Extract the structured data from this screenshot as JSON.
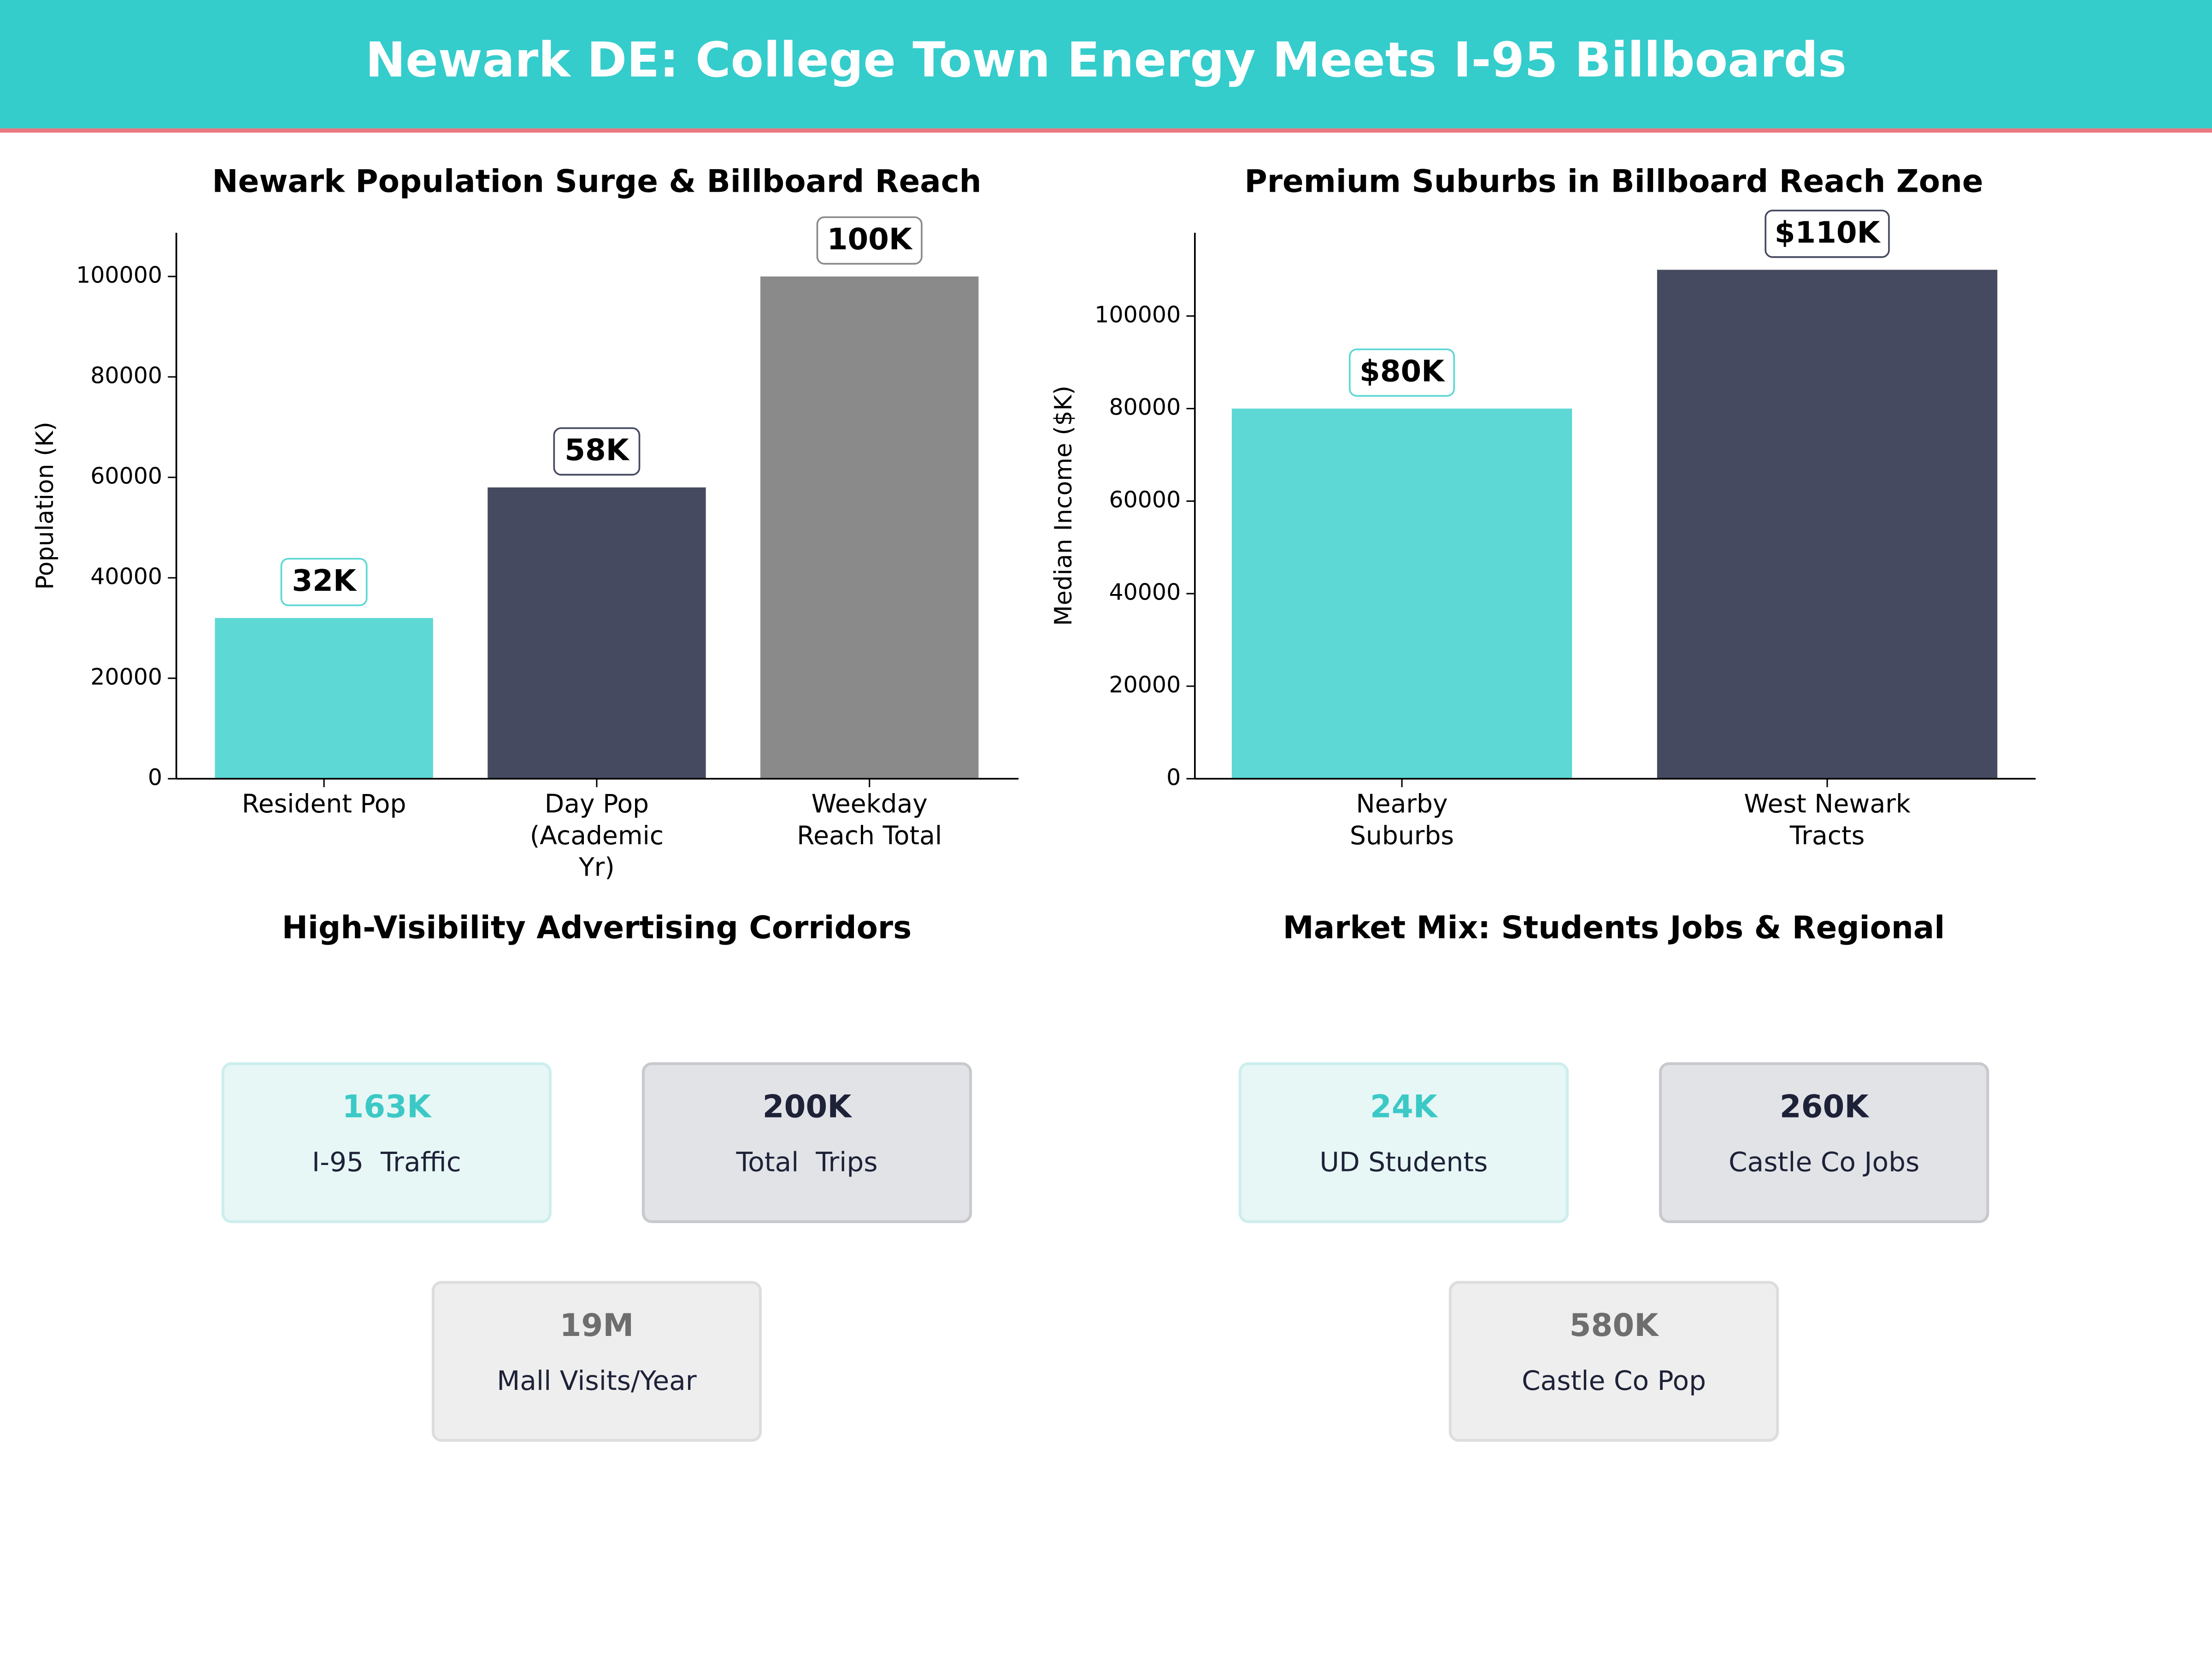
{
  "header": {
    "title": "Newark DE: College Town Energy Meets I-95 Billboards"
  },
  "chart_data": [
    {
      "type": "bar",
      "title": "Newark Population Surge & Billboard Reach",
      "ylabel": "Population (K)",
      "categories": [
        "Resident Pop",
        "Day Pop (Academic Yr)",
        "Weekday Reach Total"
      ],
      "values": [
        32000,
        58000,
        100000
      ],
      "value_labels": [
        "32K",
        "58K",
        "100K"
      ],
      "colors": [
        "#5dd8d4",
        "#454a60",
        "#8a8a8a"
      ],
      "ylim": [
        0,
        108700
      ],
      "yticks": [
        0,
        20000,
        40000,
        60000,
        80000,
        100000
      ]
    },
    {
      "type": "bar",
      "title": "Premium Suburbs in Billboard Reach Zone",
      "ylabel": "Median Income ($K)",
      "categories": [
        "Nearby Suburbs",
        "West Newark Tracts"
      ],
      "values": [
        80000,
        110000
      ],
      "value_labels": [
        "$80K",
        "$110K"
      ],
      "colors": [
        "#5dd8d4",
        "#454a60"
      ],
      "ylim": [
        0,
        118000
      ],
      "yticks": [
        0,
        20000,
        40000,
        60000,
        80000,
        100000
      ]
    }
  ],
  "panels": [
    {
      "title": "High-Visibility Advertising Corridors",
      "cards": [
        {
          "value": "163K",
          "label": "I-95  Traffic",
          "color": "#3cc9c6",
          "background": "#e6f7f6",
          "border": "#cdeeee"
        },
        {
          "value": "200K",
          "label": "Total  Trips",
          "color": "#1e2238",
          "background": "#e2e3e7",
          "border": "#c8c9cd"
        },
        {
          "value": "19M",
          "label": "Mall Visits/Year",
          "color": "#6e6e6e",
          "background": "#eeeeee",
          "border": "#dddddd"
        }
      ]
    },
    {
      "title": "Market Mix: Students Jobs & Regional",
      "cards": [
        {
          "value": "24K",
          "label": "UD Students",
          "color": "#3cc9c6",
          "background": "#e6f7f6",
          "border": "#cdeeee"
        },
        {
          "value": "260K",
          "label": "Castle Co Jobs",
          "color": "#1e2238",
          "background": "#e2e3e7",
          "border": "#c8c9cd"
        },
        {
          "value": "580K",
          "label": "Castle Co Pop",
          "color": "#6e6e6e",
          "background": "#eeeeee",
          "border": "#dddddd"
        }
      ]
    }
  ]
}
